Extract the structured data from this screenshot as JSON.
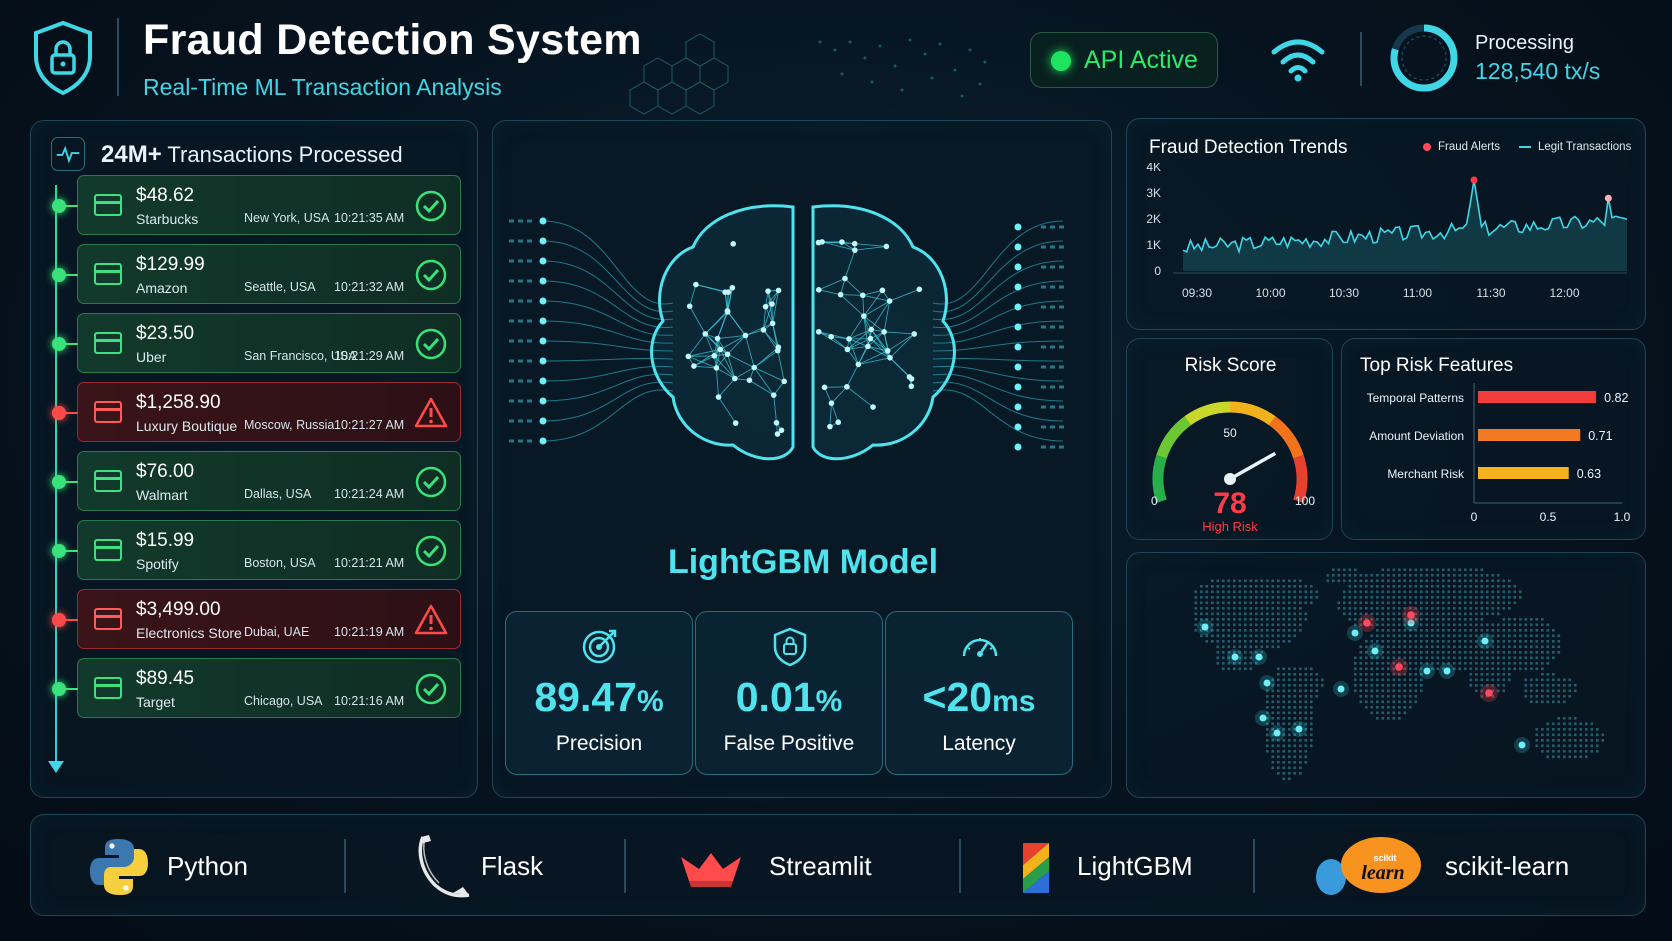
{
  "header": {
    "title": "Fraud Detection System",
    "subtitle": "Real-Time ML Transaction Analysis",
    "api_status": "API Active",
    "processing_label": "Processing",
    "processing_value": "128,540 tx/s"
  },
  "transactions": {
    "count": "24M+",
    "heading": "Transactions Processed",
    "items": [
      {
        "amount": "$48.62",
        "merchant": "Starbucks",
        "location": "New York, USA",
        "time": "10:21:35 AM",
        "status": "ok"
      },
      {
        "amount": "$129.99",
        "merchant": "Amazon",
        "location": "Seattle, USA",
        "time": "10:21:32 AM",
        "status": "ok"
      },
      {
        "amount": "$23.50",
        "merchant": "Uber",
        "location": "San Francisco, USA",
        "time": "10:21:29 AM",
        "status": "ok"
      },
      {
        "amount": "$1,258.90",
        "merchant": "Luxury Boutique",
        "location": "Moscow, Russia",
        "time": "10:21:27 AM",
        "status": "alert"
      },
      {
        "amount": "$76.00",
        "merchant": "Walmart",
        "location": "Dallas, USA",
        "time": "10:21:24 AM",
        "status": "ok"
      },
      {
        "amount": "$15.99",
        "merchant": "Spotify",
        "location": "Boston, USA",
        "time": "10:21:21 AM",
        "status": "ok"
      },
      {
        "amount": "$3,499.00",
        "merchant": "Electronics Store",
        "location": "Dubai, UAE",
        "time": "10:21:19 AM",
        "status": "alert"
      },
      {
        "amount": "$89.45",
        "merchant": "Target",
        "location": "Chicago, USA",
        "time": "10:21:16 AM",
        "status": "ok"
      }
    ]
  },
  "model": {
    "title": "LightGBM Model",
    "metrics": [
      {
        "value": "89.47",
        "unit": "%",
        "label": "Precision",
        "icon": "target-icon"
      },
      {
        "value": "0.01",
        "unit": "%",
        "label": "False Positive",
        "icon": "shield-icon"
      },
      {
        "value": "<20",
        "unit": "ms",
        "label": "Latency",
        "icon": "speedometer-icon"
      }
    ]
  },
  "trends": {
    "title": "Fraud Detection Trends",
    "legend_fraud": "Fraud Alerts",
    "legend_legit": "Legit Transactions",
    "y_ticks": [
      "0",
      "1K",
      "2K",
      "3K",
      "4K"
    ],
    "x_ticks": [
      "09:30",
      "10:00",
      "10:30",
      "11:00",
      "11:30",
      "12:00"
    ]
  },
  "risk": {
    "title": "Risk Score",
    "value": "78",
    "score": 78,
    "level": "High Risk",
    "min_label": "0",
    "mid_label": "50",
    "max_label": "100"
  },
  "features": {
    "title": "Top Risk Features",
    "items": [
      {
        "name": "Temporal Patterns",
        "value": 0.82,
        "label": "0.82",
        "color": "#f23b3b"
      },
      {
        "name": "Amount Deviation",
        "value": 0.71,
        "label": "0.71",
        "color": "#f27a22"
      },
      {
        "name": "Merchant Risk",
        "value": 0.63,
        "label": "0.63",
        "color": "#f5b21c"
      }
    ],
    "axis": [
      "0",
      "0.5",
      "1.0"
    ]
  },
  "tech": [
    {
      "name": "Python",
      "icon": "python-icon"
    },
    {
      "name": "Flask",
      "icon": "flask-icon"
    },
    {
      "name": "Streamlit",
      "icon": "streamlit-icon"
    },
    {
      "name": "LightGBM",
      "icon": "lightgbm-icon"
    },
    {
      "name": "scikit-learn",
      "icon": "scikit-learn-icon",
      "logo_text": "scikit learn"
    }
  ],
  "colors": {
    "accent": "#3fd6e6",
    "ok": "#39e27a",
    "alert": "#ff4a4a",
    "fraud_high": "#ff3b4a"
  }
}
